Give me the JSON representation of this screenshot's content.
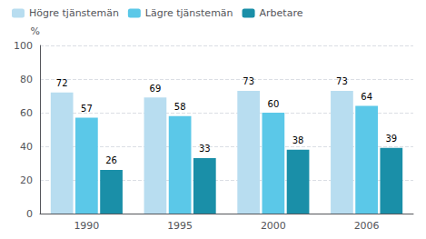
{
  "chart_data": {
    "type": "bar",
    "categories": [
      "1990",
      "1995",
      "2000",
      "2006"
    ],
    "series": [
      {
        "name": "Högre tjänstemän",
        "color": "#b8ddf0",
        "values": [
          72,
          69,
          73,
          73
        ]
      },
      {
        "name": "Lägre tjänstemän",
        "color": "#5bc8e8",
        "values": [
          57,
          58,
          60,
          64
        ]
      },
      {
        "name": "Arbetare",
        "color": "#1a8fa8",
        "values": [
          26,
          33,
          38,
          39
        ]
      }
    ],
    "y_label": "%",
    "ylim": [
      0,
      100
    ],
    "yticks": [
      0,
      20,
      40,
      60,
      80,
      100
    ],
    "grid": true,
    "legend": "upper left",
    "data_labels": true
  }
}
